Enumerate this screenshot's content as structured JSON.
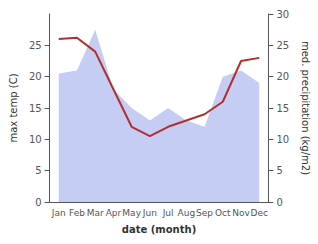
{
  "chart_data": {
    "type": "line",
    "categories": [
      "Jan",
      "Feb",
      "Mar",
      "Apr",
      "May",
      "Jun",
      "Jul",
      "Aug",
      "Sep",
      "Oct",
      "Nov",
      "Dec"
    ],
    "xlabel": "date (month)",
    "ylabel": "max temp (C)",
    "y2label": "med. precipitation (kg/m2)",
    "series": [
      {
        "type": "area",
        "axis": "y2",
        "color": "#c5cdf5",
        "values": [
          20.5,
          21.0,
          27.5,
          18.0,
          15.0,
          13.0,
          15.0,
          13.0,
          12.0,
          20.0,
          21.0,
          19.0
        ]
      },
      {
        "type": "line",
        "color": "#b03030",
        "values": [
          26.0,
          26.2,
          24.0,
          18.0,
          12.0,
          10.5,
          12.0,
          13.0,
          14.0,
          16.0,
          22.5,
          23.0
        ]
      }
    ],
    "ylim": [
      0,
      30
    ],
    "yticks": [
      0,
      5,
      10,
      15,
      20,
      25
    ],
    "y2lim": [
      0,
      30
    ],
    "y2ticks": [
      0,
      5,
      10,
      15,
      20,
      25,
      30
    ],
    "grid": false
  }
}
